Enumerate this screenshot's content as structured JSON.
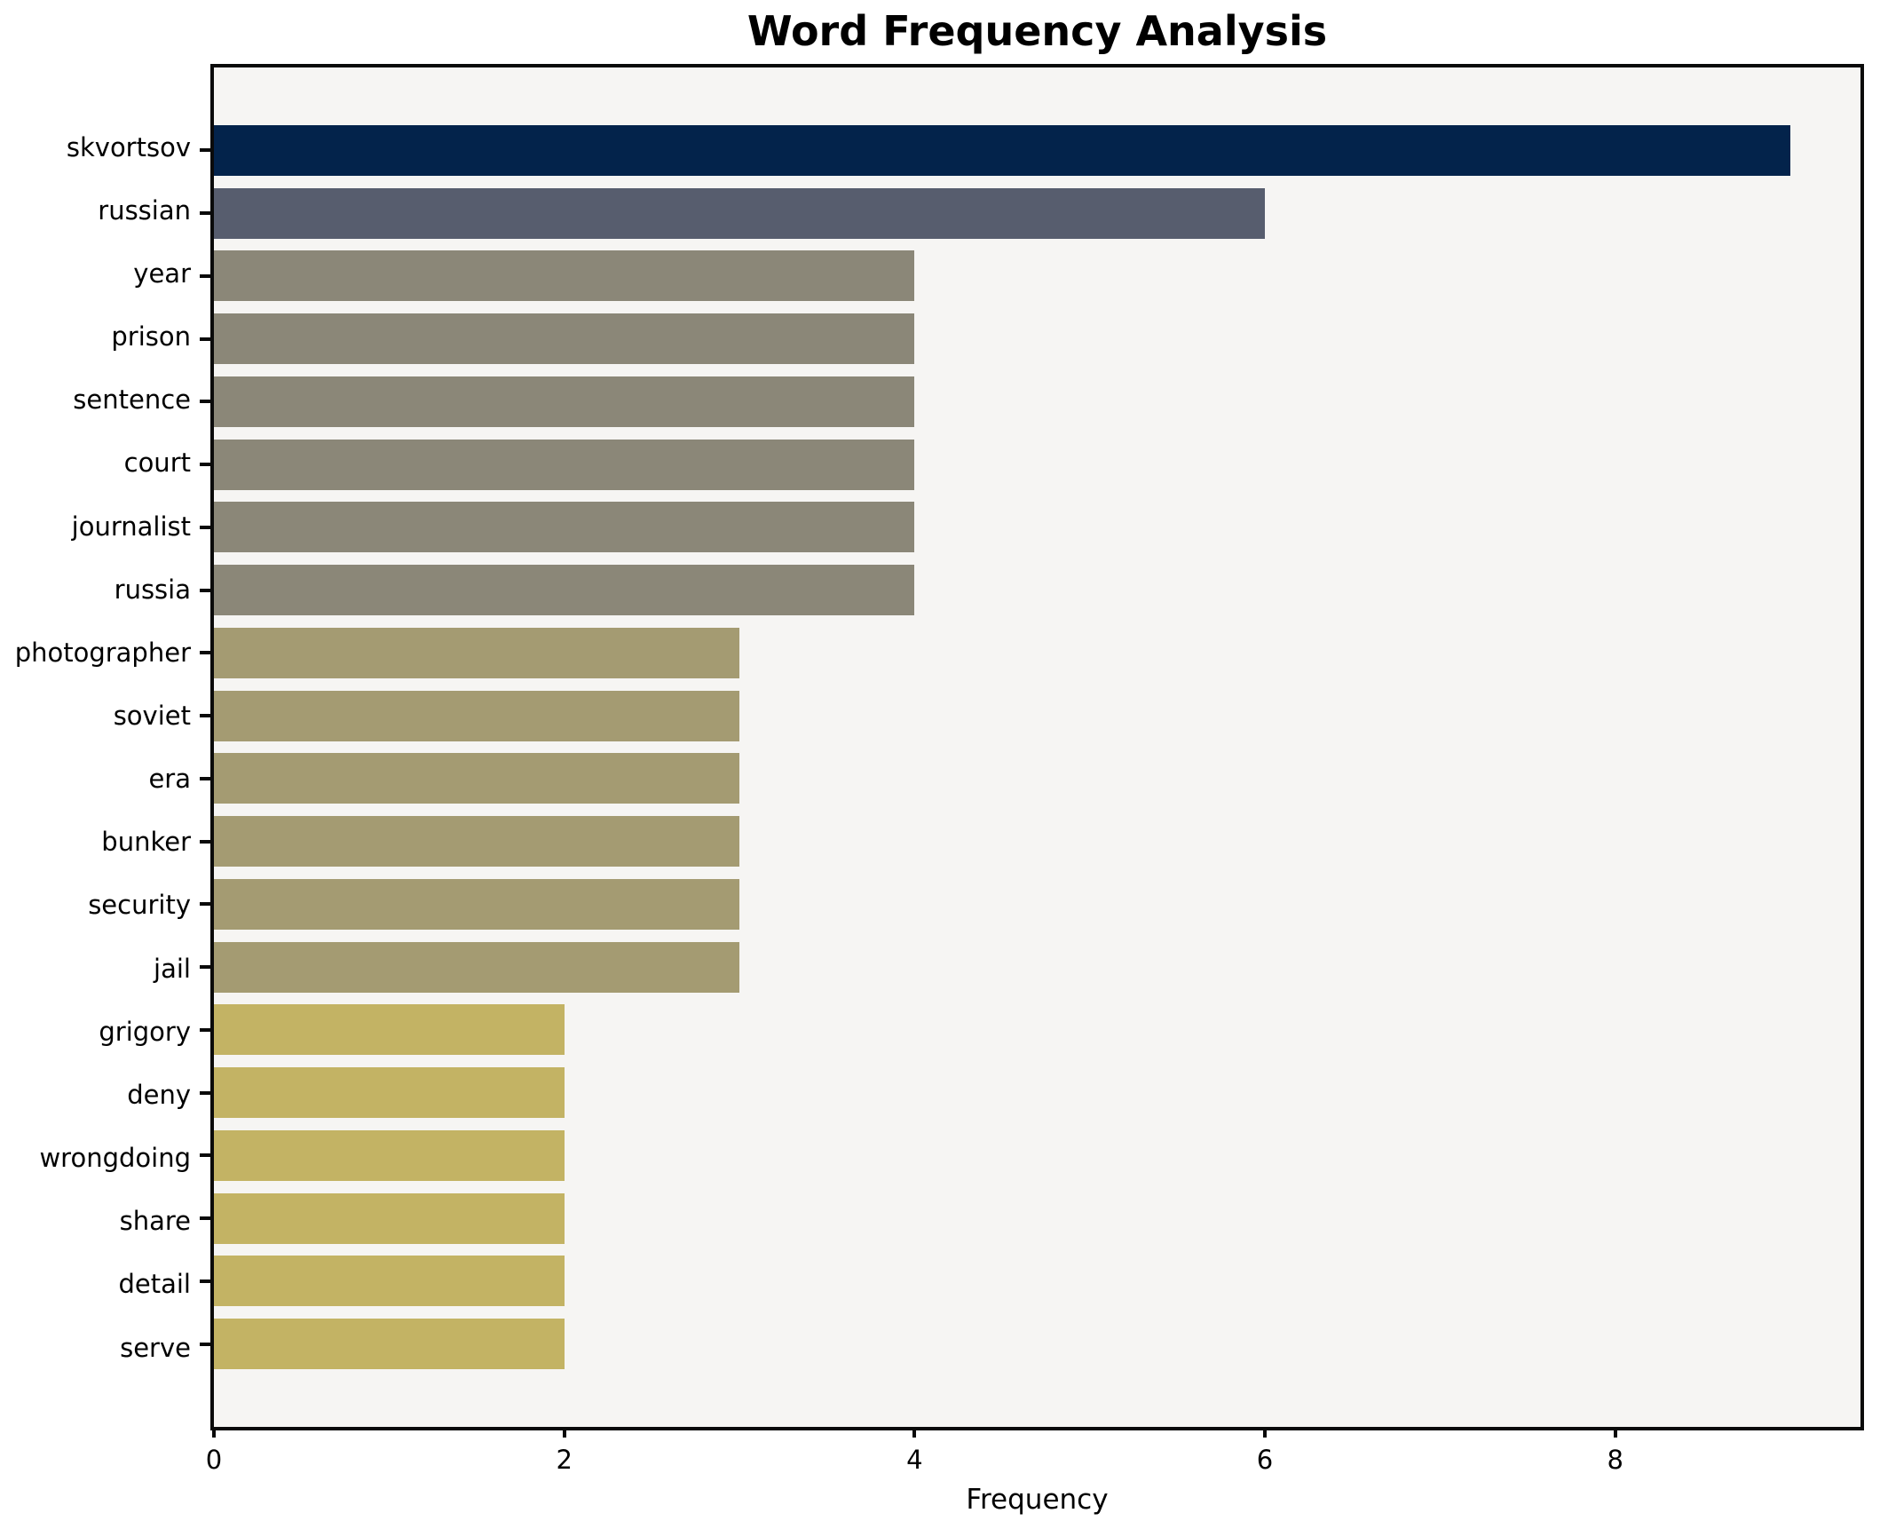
{
  "chart_data": {
    "type": "bar",
    "orientation": "horizontal",
    "title": "Word Frequency Analysis",
    "xlabel": "Frequency",
    "ylabel": "",
    "grid": false,
    "legend": false,
    "xlim": [
      0,
      9.4
    ],
    "xticks": [
      0,
      2,
      4,
      6,
      8
    ],
    "categories": [
      "skvortsov",
      "russian",
      "year",
      "prison",
      "sentence",
      "court",
      "journalist",
      "russia",
      "photographer",
      "soviet",
      "era",
      "bunker",
      "security",
      "jail",
      "grigory",
      "deny",
      "wrongdoing",
      "share",
      "detail",
      "serve"
    ],
    "values": [
      9,
      6,
      4,
      4,
      4,
      4,
      4,
      4,
      3,
      3,
      3,
      3,
      3,
      3,
      2,
      2,
      2,
      2,
      2,
      2
    ],
    "bar_colors": [
      "#03234b",
      "#575d6e",
      "#8b8778",
      "#8b8778",
      "#8b8778",
      "#8b8778",
      "#8b8778",
      "#8b8778",
      "#a49b72",
      "#a49b72",
      "#a49b72",
      "#a49b72",
      "#a49b72",
      "#a49b72",
      "#c3b364",
      "#c3b364",
      "#c3b364",
      "#c3b364",
      "#c3b364",
      "#c3b364"
    ],
    "colors": {
      "plot_background": "#f6f5f3",
      "figure_background": "#ffffff",
      "spine": "#0a0a0a",
      "text": "#000000"
    }
  }
}
